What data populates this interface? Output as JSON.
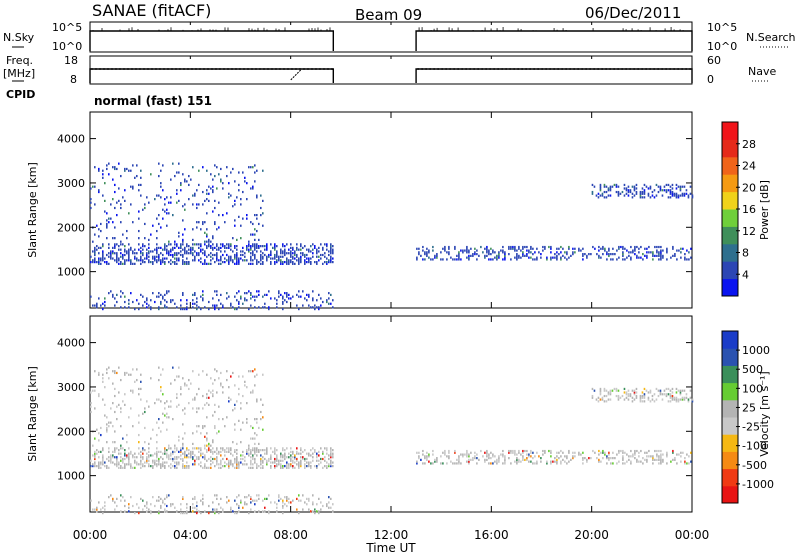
{
  "header": {
    "title": "SANAE (fitACF)",
    "beam": "Beam 09",
    "date": "06/Dec/2011"
  },
  "side_labels": {
    "nsky": "N.Sky",
    "nsearch": "N.Search",
    "freq": "Freq.",
    "freq_unit": "[MHz]",
    "nave": "Nave",
    "cpid": "CPID"
  },
  "mode_text": "normal (fast) 151",
  "colors": {
    "power_scale": [
      "#0a14f0",
      "#2c46b4",
      "#2e6f8e",
      "#3f8f5a",
      "#6fd03a",
      "#f0d21a",
      "#f59a12",
      "#f0641a",
      "#e52a1a",
      "#f0141a"
    ],
    "velocity_scale": [
      "#e81414",
      "#f03a14",
      "#f58a14",
      "#f5b814",
      "#c8c8c8",
      "#b4b4b4",
      "#66cc33",
      "#3a8f5a",
      "#2a52b0",
      "#1a3cc8"
    ]
  },
  "chart_data": [
    {
      "type": "line",
      "name_left": "N.Sky",
      "name_right": "N.Search",
      "y_ticks_left": [
        "10^5",
        "10^0"
      ],
      "y_ticks_right": [
        "10^5",
        "10^0"
      ],
      "x_range_hours": [
        0,
        24
      ],
      "segments": [
        [
          0.0,
          9.7
        ],
        [
          13.0,
          24.0
        ]
      ],
      "level": "10^5"
    },
    {
      "type": "line",
      "name_left": "Freq. [MHz]",
      "name_right": "Nave",
      "y_ticks_left": [
        "18",
        "8"
      ],
      "y_ticks_right": [
        "60",
        "0"
      ],
      "x_range_hours": [
        0,
        24
      ],
      "segments": [
        [
          0.0,
          9.7
        ],
        [
          13.0,
          24.0
        ]
      ],
      "freq_mhz": 12
    },
    {
      "type": "heatmap",
      "ylabel": "Slant Range [km]",
      "yticks": [
        1000,
        2000,
        3000,
        4000
      ],
      "ylim": [
        180,
        4600
      ],
      "colorbar_label": "Power [dB]",
      "colorbar_ticks": [
        "4",
        "8",
        "12",
        "16",
        "20",
        "24",
        "28"
      ],
      "colorbar_range": [
        0,
        30
      ],
      "x_range_hours": [
        0,
        24
      ],
      "bands": [
        {
          "x_start": 0.0,
          "x_end": 9.7,
          "r_min": 1200,
          "r_max": 1650,
          "density": 0.45
        },
        {
          "x_start": 0.0,
          "x_end": 7.0,
          "r_min": 1700,
          "r_max": 3500,
          "density": 0.08
        },
        {
          "x_start": 0.0,
          "x_end": 9.7,
          "r_min": 180,
          "r_max": 600,
          "density": 0.18
        },
        {
          "x_start": 13.0,
          "x_end": 24.0,
          "r_min": 1300,
          "r_max": 1600,
          "density": 0.3
        },
        {
          "x_start": 20.0,
          "x_end": 24.0,
          "r_min": 2700,
          "r_max": 3000,
          "density": 0.35
        }
      ]
    },
    {
      "type": "heatmap",
      "ylabel": "Slant Range [km]",
      "yticks": [
        1000,
        2000,
        3000,
        4000
      ],
      "ylim": [
        180,
        4600
      ],
      "colorbar_label": "Velocity [m s⁻¹]",
      "colorbar_ticks": [
        "1000",
        "500",
        "100",
        "25",
        "-25",
        "-100",
        "-500",
        "-1000"
      ],
      "x_range_hours": [
        0,
        24
      ],
      "xticks": [
        "00:00",
        "04:00",
        "08:00",
        "12:00",
        "16:00",
        "20:00",
        "00:00"
      ],
      "xlabel": "Time UT"
    }
  ]
}
